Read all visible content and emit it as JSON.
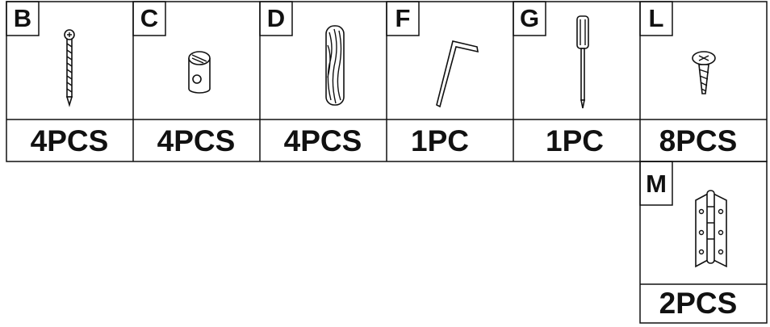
{
  "parts": [
    {
      "letter": "B",
      "quantity": "4PCS"
    },
    {
      "letter": "C",
      "quantity": "4PCS"
    },
    {
      "letter": "D",
      "quantity": "4PCS"
    },
    {
      "letter": "F",
      "quantity": "1PC"
    },
    {
      "letter": "G",
      "quantity": "1PC"
    },
    {
      "letter": "L",
      "quantity": "8PCS"
    },
    {
      "letter": "M",
      "quantity": "2PCS"
    }
  ]
}
